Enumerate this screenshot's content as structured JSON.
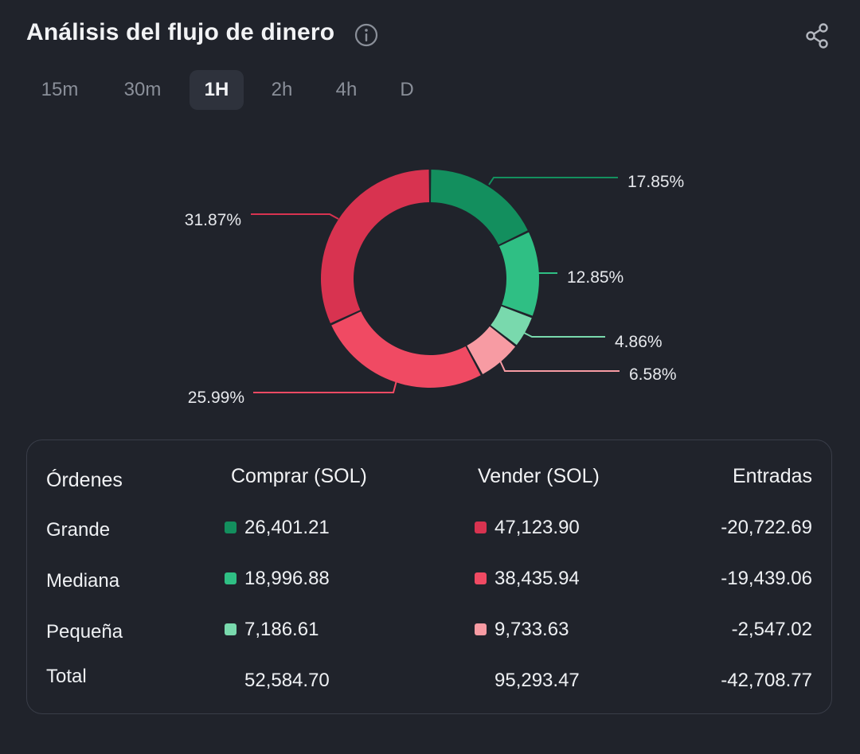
{
  "header": {
    "title": "Análisis del flujo de dinero",
    "info_icon": "info-icon",
    "share_icon": "share-icon"
  },
  "tabs": [
    {
      "label": "15m",
      "active": false
    },
    {
      "label": "30m",
      "active": false
    },
    {
      "label": "1H",
      "active": true
    },
    {
      "label": "2h",
      "active": false
    },
    {
      "label": "4h",
      "active": false
    },
    {
      "label": "D",
      "active": false
    }
  ],
  "colors": {
    "buy_large": "#138f5e",
    "buy_medium": "#2fbf84",
    "buy_small": "#79d9ad",
    "sell_large": "#d83350",
    "sell_medium": "#f04a63",
    "sell_small": "#f79ba3",
    "background": "#20232b"
  },
  "chart_data": {
    "type": "pie",
    "donut": true,
    "slices": [
      {
        "label": "17.85%",
        "value": 17.85,
        "color": "#138f5e"
      },
      {
        "label": "12.85%",
        "value": 12.85,
        "color": "#2fbf84"
      },
      {
        "label": "4.86%",
        "value": 4.86,
        "color": "#79d9ad"
      },
      {
        "label": "6.58%",
        "value": 6.58,
        "color": "#f79ba3"
      },
      {
        "label": "25.99%",
        "value": 25.99,
        "color": "#f04a63"
      },
      {
        "label": "31.87%",
        "value": 31.87,
        "color": "#d83350"
      }
    ]
  },
  "table": {
    "headers": [
      "Órdenes",
      "Comprar (SOL)",
      "Vender (SOL)",
      "Entradas"
    ],
    "rows": [
      {
        "name": "Grande",
        "buy": "26,401.21",
        "buy_color": "#138f5e",
        "sell": "47,123.90",
        "sell_color": "#d83350",
        "net": "-20,722.69"
      },
      {
        "name": "Mediana",
        "buy": "18,996.88",
        "buy_color": "#2fbf84",
        "sell": "38,435.94",
        "sell_color": "#f04a63",
        "net": "-19,439.06"
      },
      {
        "name": "Pequeña",
        "buy": "7,186.61",
        "buy_color": "#79d9ad",
        "sell": "9,733.63",
        "sell_color": "#f79ba3",
        "net": "-2,547.02"
      }
    ],
    "total": {
      "name": "Total",
      "buy": "52,584.70",
      "sell": "95,293.47",
      "net": "-42,708.77"
    }
  }
}
